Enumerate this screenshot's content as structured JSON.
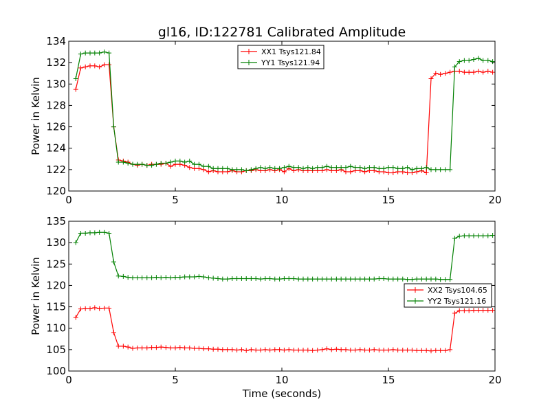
{
  "title": "gl16, ID:122781 Calibrated Amplitude",
  "chart_data": [
    {
      "type": "line",
      "title": "gl16, ID:122781 Calibrated Amplitude",
      "xlabel": "",
      "ylabel": "Power in Kelvin",
      "xlim": [
        0,
        20
      ],
      "ylim": [
        120,
        134
      ],
      "xticks": [
        0,
        5,
        10,
        15,
        20
      ],
      "yticks": [
        120,
        122,
        124,
        126,
        128,
        130,
        132,
        134
      ],
      "grid": false,
      "legend_position": "top-center",
      "x": [
        0.33,
        0.56,
        0.78,
        1.0,
        1.22,
        1.44,
        1.67,
        1.89,
        2.11,
        2.33,
        2.56,
        2.78,
        3.0,
        3.22,
        3.44,
        3.67,
        3.89,
        4.11,
        4.33,
        4.56,
        4.78,
        5.0,
        5.22,
        5.44,
        5.67,
        5.89,
        6.11,
        6.33,
        6.56,
        6.78,
        7.0,
        7.22,
        7.44,
        7.67,
        7.89,
        8.11,
        8.33,
        8.56,
        8.78,
        9.0,
        9.22,
        9.44,
        9.67,
        9.89,
        10.11,
        10.33,
        10.56,
        10.78,
        11.0,
        11.22,
        11.44,
        11.67,
        11.89,
        12.11,
        12.33,
        12.56,
        12.78,
        13.0,
        13.22,
        13.44,
        13.67,
        13.89,
        14.11,
        14.33,
        14.56,
        14.78,
        15.0,
        15.22,
        15.44,
        15.67,
        15.89,
        16.11,
        16.33,
        16.56,
        16.78,
        17.0,
        17.22,
        17.44,
        17.67,
        17.89,
        18.11,
        18.33,
        18.56,
        18.78,
        19.0,
        19.22,
        19.44,
        19.67,
        19.89
      ],
      "series": [
        {
          "name": "XX1 Tsys121.84",
          "color": "#ff0000",
          "values": [
            129.5,
            131.5,
            131.6,
            131.7,
            131.7,
            131.6,
            131.8,
            131.8,
            126.0,
            122.9,
            122.8,
            122.7,
            122.5,
            122.4,
            122.5,
            122.4,
            122.5,
            122.5,
            122.5,
            122.6,
            122.3,
            122.5,
            122.5,
            122.4,
            122.2,
            122.1,
            122.1,
            122.0,
            121.8,
            121.9,
            121.8,
            121.8,
            121.8,
            121.9,
            121.8,
            121.8,
            121.9,
            121.9,
            122.0,
            121.9,
            121.9,
            122.0,
            121.9,
            122.0,
            121.8,
            122.1,
            121.9,
            122.0,
            121.9,
            121.9,
            121.9,
            121.9,
            121.9,
            122.0,
            121.9,
            121.9,
            122.0,
            121.8,
            121.8,
            121.9,
            121.9,
            121.8,
            121.9,
            121.9,
            121.8,
            121.8,
            121.7,
            121.7,
            121.8,
            121.8,
            121.7,
            121.7,
            121.8,
            121.9,
            121.7,
            130.5,
            131.0,
            130.9,
            131.0,
            131.1,
            131.2,
            131.2,
            131.1,
            131.1,
            131.1,
            131.2,
            131.1,
            131.2,
            131.1
          ]
        },
        {
          "name": "YY1 Tsys121.94",
          "color": "#008000",
          "values": [
            130.5,
            132.8,
            132.9,
            132.9,
            132.9,
            132.9,
            133.0,
            132.9,
            126.0,
            122.7,
            122.7,
            122.6,
            122.5,
            122.5,
            122.5,
            122.4,
            122.4,
            122.5,
            122.6,
            122.6,
            122.7,
            122.8,
            122.8,
            122.7,
            122.8,
            122.5,
            122.5,
            122.3,
            122.3,
            122.1,
            122.1,
            122.1,
            122.1,
            122.0,
            122.0,
            122.0,
            121.9,
            122.0,
            122.1,
            122.2,
            122.1,
            122.2,
            122.1,
            122.1,
            122.2,
            122.3,
            122.2,
            122.2,
            122.1,
            122.2,
            122.1,
            122.2,
            122.2,
            122.3,
            122.2,
            122.2,
            122.2,
            122.2,
            122.3,
            122.2,
            122.2,
            122.1,
            122.2,
            122.2,
            122.1,
            122.1,
            122.2,
            122.2,
            122.1,
            122.1,
            122.2,
            122.0,
            122.1,
            122.1,
            122.2,
            122.0,
            122.0,
            122.0,
            122.0,
            122.0,
            131.6,
            132.1,
            132.2,
            132.2,
            132.3,
            132.4,
            132.2,
            132.2,
            132.1
          ]
        }
      ]
    },
    {
      "type": "line",
      "title": "",
      "xlabel": "Time (seconds)",
      "ylabel": "Power in Kelvin",
      "xlim": [
        0,
        20
      ],
      "ylim": [
        100,
        135
      ],
      "xticks": [
        0,
        5,
        10,
        15,
        20
      ],
      "yticks": [
        100,
        105,
        110,
        115,
        120,
        125,
        130,
        135
      ],
      "grid": false,
      "legend_position": "center-right",
      "x": [
        0.33,
        0.56,
        0.78,
        1.0,
        1.22,
        1.44,
        1.67,
        1.89,
        2.11,
        2.33,
        2.56,
        2.78,
        3.0,
        3.22,
        3.44,
        3.67,
        3.89,
        4.11,
        4.33,
        4.56,
        4.78,
        5.0,
        5.22,
        5.44,
        5.67,
        5.89,
        6.11,
        6.33,
        6.56,
        6.78,
        7.0,
        7.22,
        7.44,
        7.67,
        7.89,
        8.11,
        8.33,
        8.56,
        8.78,
        9.0,
        9.22,
        9.44,
        9.67,
        9.89,
        10.11,
        10.33,
        10.56,
        10.78,
        11.0,
        11.22,
        11.44,
        11.67,
        11.89,
        12.11,
        12.33,
        12.56,
        12.78,
        13.0,
        13.22,
        13.44,
        13.67,
        13.89,
        14.11,
        14.33,
        14.56,
        14.78,
        15.0,
        15.22,
        15.44,
        15.67,
        15.89,
        16.11,
        16.33,
        16.56,
        16.78,
        17.0,
        17.22,
        17.44,
        17.67,
        17.89,
        18.11,
        18.33,
        18.56,
        18.78,
        19.0,
        19.22,
        19.44,
        19.67,
        19.89
      ],
      "series": [
        {
          "name": "XX2 Tsys104.65",
          "color": "#ff0000",
          "values": [
            112.5,
            114.5,
            114.6,
            114.6,
            114.8,
            114.6,
            114.7,
            114.7,
            109.0,
            105.8,
            105.8,
            105.6,
            105.3,
            105.4,
            105.4,
            105.4,
            105.5,
            105.5,
            105.6,
            105.5,
            105.4,
            105.4,
            105.5,
            105.4,
            105.4,
            105.3,
            105.3,
            105.2,
            105.2,
            105.1,
            105.1,
            105.0,
            105.0,
            105.0,
            104.9,
            105.0,
            104.8,
            105.0,
            104.9,
            104.9,
            105.0,
            104.9,
            105.0,
            105.0,
            104.9,
            105.0,
            104.9,
            104.9,
            104.9,
            104.9,
            104.8,
            104.9,
            105.0,
            105.2,
            105.0,
            105.1,
            105.0,
            105.0,
            104.9,
            104.9,
            105.0,
            104.9,
            104.9,
            105.0,
            104.9,
            104.9,
            104.9,
            105.0,
            104.9,
            104.9,
            104.9,
            104.9,
            104.8,
            104.8,
            104.8,
            104.7,
            104.8,
            104.8,
            104.8,
            105.0,
            113.5,
            114.1,
            114.1,
            114.1,
            114.2,
            114.2,
            114.2,
            114.2,
            114.2
          ]
        },
        {
          "name": "YY2 Tsys121.16",
          "color": "#008000",
          "values": [
            130.0,
            132.2,
            132.2,
            132.3,
            132.3,
            132.4,
            132.4,
            132.2,
            125.5,
            122.2,
            122.1,
            121.9,
            121.8,
            121.8,
            121.8,
            121.8,
            121.8,
            121.9,
            121.8,
            121.9,
            121.8,
            121.9,
            121.9,
            122.0,
            122.0,
            122.0,
            122.1,
            122.0,
            121.8,
            121.7,
            121.6,
            121.5,
            121.5,
            121.6,
            121.6,
            121.6,
            121.6,
            121.6,
            121.6,
            121.5,
            121.6,
            121.6,
            121.5,
            121.5,
            121.6,
            121.6,
            121.6,
            121.5,
            121.5,
            121.5,
            121.5,
            121.5,
            121.5,
            121.5,
            121.5,
            121.5,
            121.5,
            121.5,
            121.5,
            121.5,
            121.5,
            121.5,
            121.5,
            121.5,
            121.6,
            121.6,
            121.5,
            121.5,
            121.5,
            121.5,
            121.4,
            121.4,
            121.5,
            121.5,
            121.5,
            121.5,
            121.5,
            121.4,
            121.4,
            121.4,
            131.0,
            131.5,
            131.6,
            131.6,
            131.6,
            131.6,
            131.6,
            131.6,
            131.7
          ]
        }
      ]
    }
  ]
}
